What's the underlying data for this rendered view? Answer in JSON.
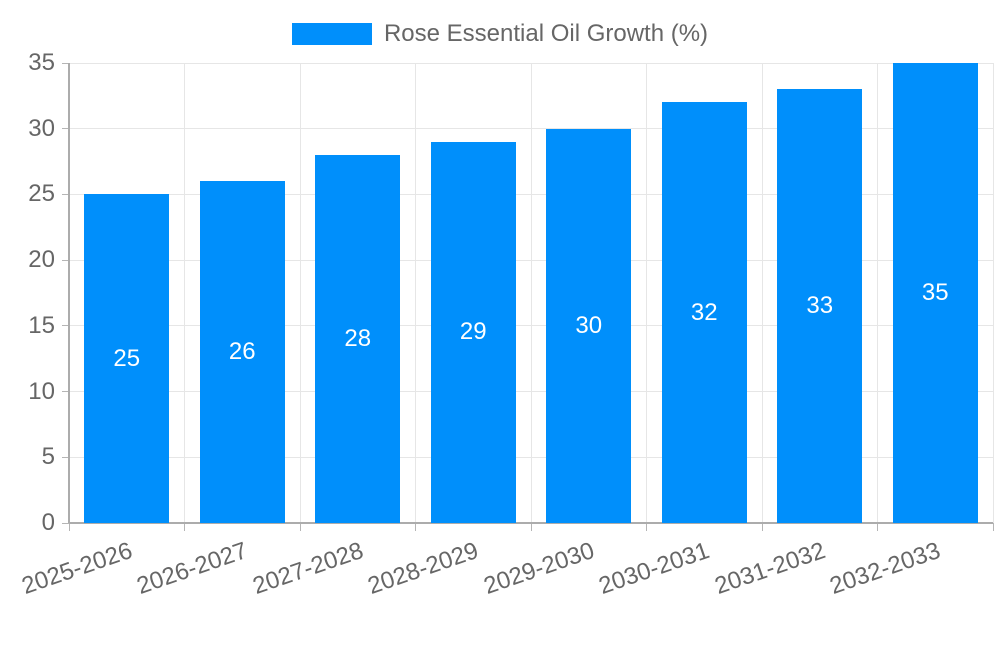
{
  "chart_data": {
    "type": "bar",
    "title": "",
    "legend": "Rose Essential Oil Growth (%)",
    "legend_position": "top-center",
    "categories": [
      "2025-2026",
      "2026-2027",
      "2027-2028",
      "2028-2029",
      "2029-2030",
      "2030-2031",
      "2031-2032",
      "2032-2033"
    ],
    "values": [
      25,
      26,
      28,
      29,
      30,
      32,
      33,
      35
    ],
    "xlabel": "",
    "ylabel": "",
    "ylim": [
      0,
      35
    ],
    "yticks": [
      0,
      5,
      10,
      15,
      20,
      25,
      30,
      35
    ],
    "grid": true,
    "bar_labels_inside": true,
    "colors": {
      "bar": "#008FFB",
      "bar_label_text": "#ffffff",
      "axis_text": "#666666",
      "legend_text": "#666666",
      "gridline": "#e6e6e6",
      "axis_line": "#acacac",
      "tick_mark": "#b5b5b5",
      "background": "#ffffff"
    }
  }
}
